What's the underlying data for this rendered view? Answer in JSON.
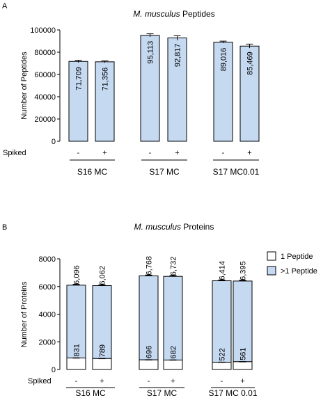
{
  "colors": {
    "bar_fill": "#c5d9f1",
    "bar_stroke": "#000000",
    "white_fill": "#ffffff"
  },
  "chart_data": [
    {
      "panel_label": "A",
      "type": "bar",
      "title_italic": "M. musculus",
      "title_rest": " Peptides",
      "ylabel": "Number of Peptides",
      "ylim": [
        0,
        100000
      ],
      "yticks": [
        "0",
        "20000",
        "40000",
        "60000",
        "80000",
        "100000"
      ],
      "spiked_label": "Spiked",
      "groups": [
        "S16 MC",
        "S17 MC",
        "S17 MC0.01"
      ],
      "categories": [
        "S16 MC -",
        "S16 MC +",
        "S17 MC -",
        "S17 MC +",
        "S17 MC0.01 -",
        "S17 MC0.01 +"
      ],
      "spiked": [
        "-",
        "+",
        "-",
        "+",
        "-",
        "+"
      ],
      "values": [
        71709,
        71356,
        95113,
        92817,
        89016,
        85469
      ],
      "value_labels": [
        "71,709",
        "71,356",
        "95,113",
        "92,817",
        "89,016",
        "85,469"
      ],
      "errors": [
        1000,
        800,
        1400,
        2000,
        900,
        1800
      ]
    },
    {
      "panel_label": "B",
      "type": "bar",
      "stacked": true,
      "title_italic": "M. musculus",
      "title_rest": " Proteins",
      "ylabel": "Number of Proteins",
      "ylim": [
        0,
        8000
      ],
      "yticks": [
        "0",
        "2000",
        "4000",
        "6000",
        "8000"
      ],
      "spiked_label": "Spiked",
      "groups": [
        "S16 MC",
        "S17 MC",
        "S17 MC 0.01"
      ],
      "categories": [
        "S16 MC -",
        "S16 MC +",
        "S17 MC -",
        "S17 MC +",
        "S17 MC 0.01 -",
        "S17 MC 0.01 +"
      ],
      "spiked": [
        "-",
        "+",
        "-",
        "+",
        "-",
        "+"
      ],
      "series": [
        {
          "name": "1 Peptide",
          "values": [
            831,
            789,
            696,
            682,
            522,
            561
          ],
          "labels": [
            "831",
            "789",
            "696",
            "682",
            "522",
            "561"
          ]
        },
        {
          "name": ">1 Peptide",
          "values": [
            5265,
            5273,
            6072,
            6050,
            5892,
            5834
          ]
        }
      ],
      "totals": [
        6096,
        6062,
        6768,
        6732,
        6414,
        6395
      ],
      "total_labels": [
        "6,096",
        "6,062",
        "6,768",
        "6,732",
        "6,414",
        "6,395"
      ],
      "legend_position": "right"
    }
  ]
}
